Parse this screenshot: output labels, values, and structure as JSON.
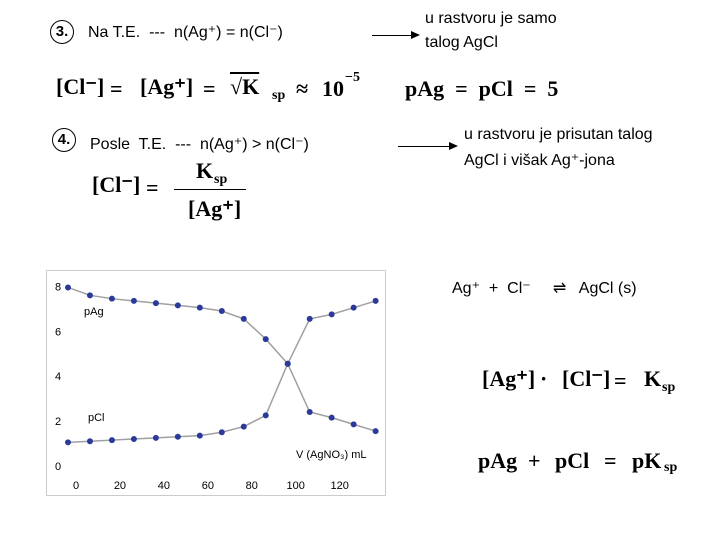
{
  "item3": {
    "number": "3.",
    "condition": "Na T.E.  ---  n(Ag⁺) = n(Cl⁻)",
    "result": [
      "u rastvoru je samo",
      "talog AgCl"
    ],
    "formula": [
      "[Cl⁻]",
      "=",
      "[Ag⁺]",
      "=",
      "√K",
      "sp",
      "≈",
      "10",
      "−5"
    ],
    "pformula": "pAg  =  pCl  =  5"
  },
  "item4": {
    "number": "4.",
    "condition": "Posle  T.E.  ---  n(Ag⁺) > n(Cl⁻)",
    "result": [
      "u rastvoru je prisutan talog",
      "AgCl i višak Ag⁺-jona"
    ],
    "formula": {
      "lhs": "[Cl⁻]",
      "eq": "=",
      "numerator": "K",
      "numerator_sub": "sp",
      "denominator": "[Ag⁺]"
    }
  },
  "equilibrium": "Ag⁺  +  Cl⁻     ⇌   AgCl (s)",
  "ksp_formula": [
    "[Ag⁺]",
    "·",
    "[Cl⁻]",
    "=",
    "K",
    "sp"
  ],
  "pk_formula": [
    "pAg",
    "+",
    "pCl",
    "=",
    "pK",
    "sp"
  ],
  "chart_data": {
    "type": "line",
    "x_label": "V (AgNO₃) mL",
    "x": [
      0,
      10,
      20,
      30,
      40,
      50,
      60,
      70,
      80,
      90,
      100,
      110,
      120,
      130,
      140
    ],
    "series": [
      {
        "name": "pAg",
        "color": "#2b3a9a",
        "values": [
          8.0,
          7.65,
          7.5,
          7.4,
          7.3,
          7.2,
          7.1,
          6.95,
          6.6,
          5.7,
          4.6,
          2.45,
          2.2,
          1.9,
          1.6
        ]
      },
      {
        "name": "pCl",
        "color": "#2b3a9a",
        "values": [
          1.1,
          1.15,
          1.2,
          1.25,
          1.3,
          1.35,
          1.4,
          1.55,
          1.8,
          2.3,
          4.6,
          6.6,
          6.8,
          7.1,
          7.4
        ]
      }
    ],
    "line_color": "#a0a0a0",
    "xlim": [
      0,
      142
    ],
    "ylim": [
      0,
      8.6
    ],
    "xticks": [
      0,
      20,
      40,
      60,
      80,
      100,
      120
    ],
    "yticks": [
      0,
      2,
      4,
      6,
      8
    ]
  }
}
